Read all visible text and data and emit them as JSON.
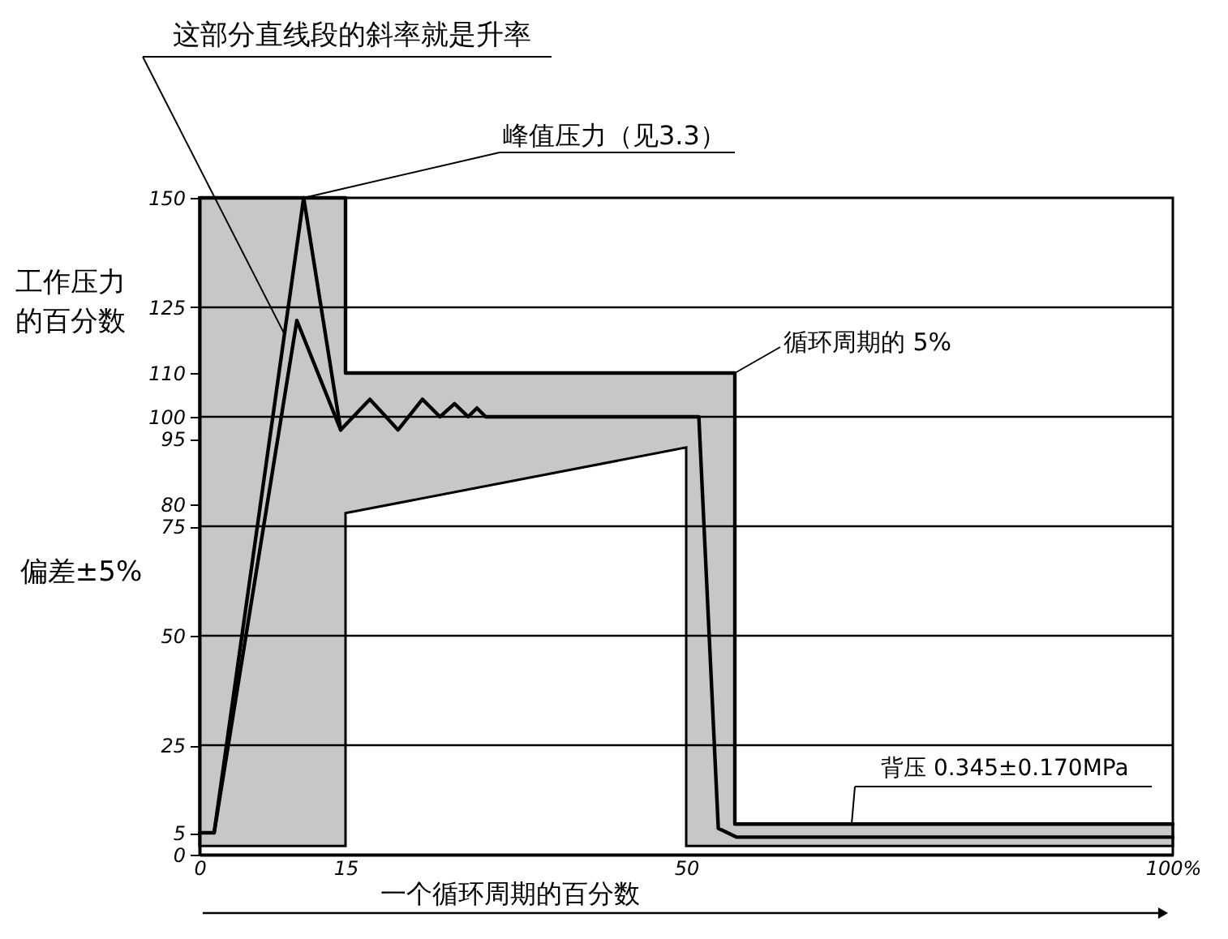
{
  "chart_data": {
    "type": "line",
    "xlabel": "一个循环周期的百分数",
    "ylabel": "工作压力的百分数",
    "xlim": [
      0,
      100
    ],
    "xticks": [
      0,
      15,
      50,
      {
        "value": 100,
        "label": "100%"
      }
    ],
    "ylim": [
      0,
      150
    ],
    "yticks": [
      0,
      5,
      25,
      50,
      75,
      80,
      95,
      100,
      110,
      125,
      150
    ],
    "series": [
      {
        "color": "#000000",
        "x": [
          0,
          15,
          15,
          50,
          50,
          55,
          55,
          100
        ],
        "values": [
          150,
          150,
          110,
          110,
          110,
          110,
          7,
          7
        ],
        "lower": [
          2,
          2,
          78,
          93,
          2,
          2,
          2,
          2
        ],
        "upper": [
          150,
          150,
          110,
          110,
          110,
          110,
          7,
          7
        ]
      },
      {
        "color": "#000000",
        "x": [
          0,
          1.5,
          10.7,
          14.5,
          17.5,
          20.4,
          22.9,
          24.7,
          26.2,
          27.6,
          28.5,
          29.4,
          51.3,
          53.3,
          55.2,
          100
        ],
        "values": [
          5,
          5,
          150,
          97,
          104,
          97,
          104,
          100,
          103,
          100,
          102,
          100,
          100,
          6,
          4,
          4
        ]
      },
      {
        "color": "#000000",
        "x": [
          1.5,
          10,
          14.5
        ],
        "values": [
          5,
          122,
          97
        ]
      }
    ],
    "ref_lines": [
      {
        "axis": "y",
        "value": 25
      },
      {
        "axis": "y",
        "value": 50
      },
      {
        "axis": "y",
        "value": 75
      },
      {
        "axis": "y",
        "value": 100
      },
      {
        "axis": "y",
        "value": 125
      }
    ],
    "annotations": [
      {
        "text": "这部分直线段的斜率就是升率",
        "x": 8.7,
        "y": 119
      },
      {
        "text": "峰值压力（见3.3）",
        "x": 10.7,
        "y": 150
      },
      {
        "text": "循环周期的 5%",
        "x": 55,
        "y": 110
      },
      {
        "text": "背压 0.345±0.170MPa",
        "x": 67,
        "y": 7
      },
      "偏差±5%"
    ]
  }
}
